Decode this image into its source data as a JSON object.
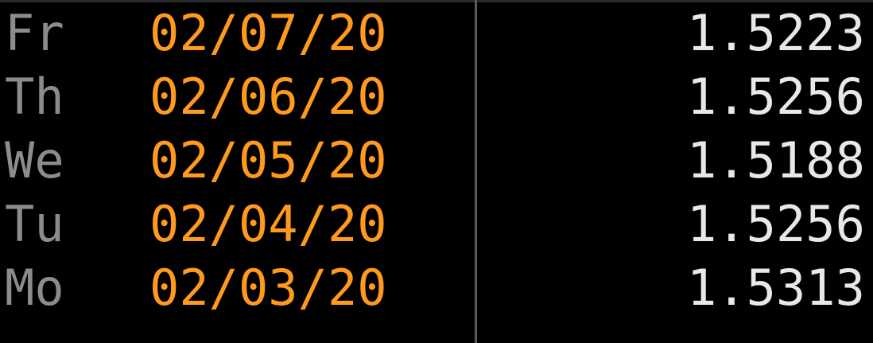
{
  "rows": [
    {
      "day": "Fr",
      "date": "02/07/20",
      "value": "1.5223"
    },
    {
      "day": "Th",
      "date": "02/06/20",
      "value": "1.5256"
    },
    {
      "day": "We",
      "date": "02/05/20",
      "value": "1.5188"
    },
    {
      "day": "Tu",
      "date": "02/04/20",
      "value": "1.5256"
    },
    {
      "day": "Mo",
      "date": "02/03/20",
      "value": "1.5313"
    }
  ],
  "colors": {
    "background": "#000000",
    "day_text": "#8c8c8c",
    "date_text": "#ff9a1f",
    "value_text": "#e8e8e8",
    "divider": "#5b5b5b"
  }
}
